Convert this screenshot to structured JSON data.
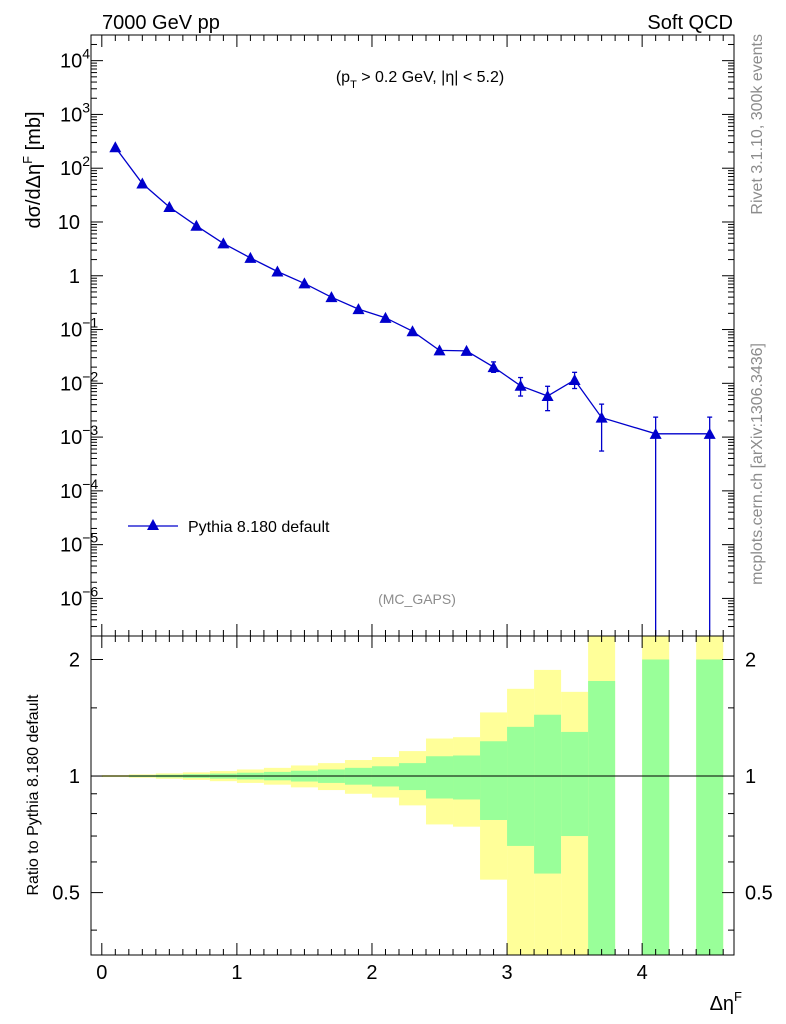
{
  "header": {
    "energy_label": "7000 GeV pp",
    "process_label": "Soft QCD"
  },
  "side": {
    "rivet_label": "Rivet 3.1.10,  300k events",
    "source_label": "mcplots.cern.ch [arXiv:1306.3436]"
  },
  "chart_data": [
    {
      "type": "line",
      "panel": "main",
      "annotation": "(p_T > 0.2 GeV, |η| < 5.2)",
      "watermark": "(MC_GAPS)",
      "ylabel": "dσ/dΔη^F [mb]",
      "yscale": "log",
      "ylim": [
        2e-07,
        30000.0
      ],
      "xlim": [
        -0.08,
        4.68
      ],
      "grid": false,
      "legend_position": "middle-left",
      "y_ticks": [
        {
          "v": 10000.0,
          "base": "10",
          "exp": "4"
        },
        {
          "v": 1000.0,
          "base": "10",
          "exp": "3"
        },
        {
          "v": 100.0,
          "base": "10",
          "exp": "2"
        },
        {
          "v": 10,
          "base": "10",
          "exp": ""
        },
        {
          "v": 1,
          "base": "1",
          "exp": ""
        },
        {
          "v": 0.1,
          "base": "10",
          "exp": "−1"
        },
        {
          "v": 0.01,
          "base": "10",
          "exp": "−2"
        },
        {
          "v": 0.001,
          "base": "10",
          "exp": "−3"
        },
        {
          "v": 0.0001,
          "base": "10",
          "exp": "−4"
        },
        {
          "v": 1e-05,
          "base": "10",
          "exp": "−5"
        },
        {
          "v": 1e-06,
          "base": "10",
          "exp": "−6"
        }
      ],
      "series": [
        {
          "name": "Pythia 8.180 default",
          "color": "#0000cc",
          "x": [
            0.1,
            0.3,
            0.5,
            0.7,
            0.9,
            1.1,
            1.3,
            1.5,
            1.7,
            1.9,
            2.1,
            2.3,
            2.5,
            2.7,
            2.9,
            3.1,
            3.3,
            3.5,
            3.7,
            4.1,
            4.5
          ],
          "y": [
            245,
            52,
            19,
            8.5,
            4.0,
            2.15,
            1.2,
            0.72,
            0.4,
            0.24,
            0.165,
            0.093,
            0.041,
            0.04,
            0.02,
            0.009,
            0.0058,
            0.0115,
            0.0023,
            0.00115,
            0.00115
          ],
          "y_err_low": [
            0,
            0,
            0,
            0,
            0,
            0,
            0,
            0,
            0,
            0,
            0,
            0,
            0,
            0,
            0.004,
            0.0032,
            0.0027,
            0.0035,
            0.00175,
            0.00115,
            0.00115
          ],
          "y_err_high": [
            0,
            0,
            0,
            0,
            0,
            0,
            0,
            0,
            0,
            0,
            0,
            0,
            0,
            0,
            0.005,
            0.0038,
            0.003,
            0.0045,
            0.0018,
            0.0012,
            0.0012
          ]
        }
      ]
    },
    {
      "type": "area",
      "panel": "ratio",
      "ylabel": "Ratio to Pythia 8.180 default",
      "xlabel": "Δη^F",
      "yscale": "log",
      "ylim": [
        0.345,
        2.3
      ],
      "xlim": [
        -0.08,
        4.68
      ],
      "reference_line": 1,
      "y_ticks": [
        "0.5",
        "1",
        "2"
      ],
      "x_ticks": [
        "0",
        "1",
        "2",
        "3",
        "4"
      ],
      "bins": [
        {
          "x0": 0.0,
          "x1": 0.2,
          "g": [
            0.997,
            1.003
          ],
          "y": [
            0.994,
            1.006
          ]
        },
        {
          "x0": 0.2,
          "x1": 0.4,
          "g": [
            0.995,
            1.005
          ],
          "y": [
            0.99,
            1.01
          ]
        },
        {
          "x0": 0.4,
          "x1": 0.6,
          "g": [
            0.992,
            1.008
          ],
          "y": [
            0.984,
            1.016
          ]
        },
        {
          "x0": 0.6,
          "x1": 0.8,
          "g": [
            0.989,
            1.011
          ],
          "y": [
            0.978,
            1.022
          ]
        },
        {
          "x0": 0.8,
          "x1": 1.0,
          "g": [
            0.985,
            1.015
          ],
          "y": [
            0.97,
            1.03
          ]
        },
        {
          "x0": 1.0,
          "x1": 1.2,
          "g": [
            0.98,
            1.02
          ],
          "y": [
            0.96,
            1.04
          ]
        },
        {
          "x0": 1.2,
          "x1": 1.4,
          "g": [
            0.975,
            1.025
          ],
          "y": [
            0.95,
            1.05
          ]
        },
        {
          "x0": 1.4,
          "x1": 1.6,
          "g": [
            0.968,
            1.032
          ],
          "y": [
            0.935,
            1.065
          ]
        },
        {
          "x0": 1.6,
          "x1": 1.8,
          "g": [
            0.96,
            1.04
          ],
          "y": [
            0.92,
            1.08
          ]
        },
        {
          "x0": 1.8,
          "x1": 2.0,
          "g": [
            0.95,
            1.05
          ],
          "y": [
            0.9,
            1.1
          ]
        },
        {
          "x0": 2.0,
          "x1": 2.2,
          "g": [
            0.94,
            1.06
          ],
          "y": [
            0.88,
            1.12
          ]
        },
        {
          "x0": 2.2,
          "x1": 2.4,
          "g": [
            0.92,
            1.08
          ],
          "y": [
            0.84,
            1.16
          ]
        },
        {
          "x0": 2.4,
          "x1": 2.6,
          "g": [
            0.875,
            1.125
          ],
          "y": [
            0.75,
            1.25
          ]
        },
        {
          "x0": 2.6,
          "x1": 2.8,
          "g": [
            0.87,
            1.13
          ],
          "y": [
            0.74,
            1.26
          ]
        },
        {
          "x0": 2.8,
          "x1": 3.0,
          "g": [
            0.77,
            1.23
          ],
          "y": [
            0.54,
            1.46
          ]
        },
        {
          "x0": 3.0,
          "x1": 3.2,
          "g": [
            0.66,
            1.34
          ],
          "y": [
            0.32,
            1.68
          ]
        },
        {
          "x0": 3.2,
          "x1": 3.4,
          "g": [
            0.56,
            1.44
          ],
          "y": [
            0.32,
            1.88
          ]
        },
        {
          "x0": 3.4,
          "x1": 3.6,
          "g": [
            0.7,
            1.3
          ],
          "y": [
            0.32,
            1.65
          ]
        },
        {
          "x0": 3.6,
          "x1": 3.8,
          "g": [
            0.32,
            1.76
          ],
          "y": [
            0.32,
            2.5
          ]
        },
        {
          "x0": 4.0,
          "x1": 4.2,
          "g": [
            0.32,
            2.0
          ],
          "y": [
            0.32,
            2.5
          ]
        },
        {
          "x0": 4.4,
          "x1": 4.6,
          "g": [
            0.32,
            2.0
          ],
          "y": [
            0.32,
            2.5
          ]
        }
      ],
      "colors": {
        "inner_band": "#99ff99",
        "outer_band": "#ffff99"
      }
    }
  ]
}
